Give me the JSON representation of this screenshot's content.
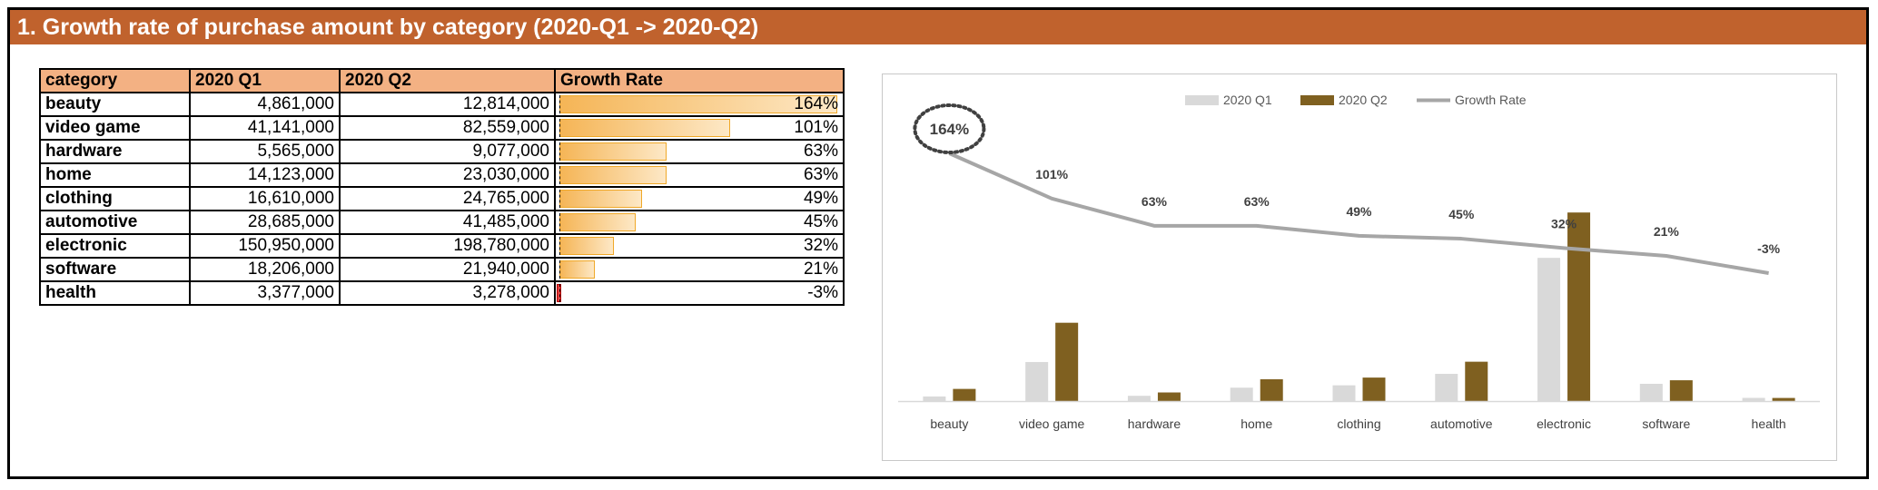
{
  "title": "1. Growth rate of purchase amount by category (2020-Q1 -> 2020-Q2)",
  "table": {
    "headers": [
      "category",
      "2020 Q1",
      "2020 Q2",
      "Growth Rate"
    ],
    "rows": [
      {
        "category": "beauty",
        "q1": "4,861,000",
        "q2": "12,814,000",
        "rate": "164%",
        "rate_value": 164
      },
      {
        "category": "video game",
        "q1": "41,141,000",
        "q2": "82,559,000",
        "rate": "101%",
        "rate_value": 101
      },
      {
        "category": "hardware",
        "q1": "5,565,000",
        "q2": "9,077,000",
        "rate": "63%",
        "rate_value": 63
      },
      {
        "category": "home",
        "q1": "14,123,000",
        "q2": "23,030,000",
        "rate": "63%",
        "rate_value": 63
      },
      {
        "category": "clothing",
        "q1": "16,610,000",
        "q2": "24,765,000",
        "rate": "49%",
        "rate_value": 49
      },
      {
        "category": "automotive",
        "q1": "28,685,000",
        "q2": "41,485,000",
        "rate": "45%",
        "rate_value": 45
      },
      {
        "category": "electronic",
        "q1": "150,950,000",
        "q2": "198,780,000",
        "rate": "32%",
        "rate_value": 32
      },
      {
        "category": "software",
        "q1": "18,206,000",
        "q2": "21,940,000",
        "rate": "21%",
        "rate_value": 21
      },
      {
        "category": "health",
        "q1": "3,377,000",
        "q2": "3,278,000",
        "rate": "-3%",
        "rate_value": -3
      }
    ]
  },
  "chart_data": {
    "type": "bar",
    "categories": [
      "beauty",
      "video game",
      "hardware",
      "home",
      "clothing",
      "automotive",
      "electronic",
      "software",
      "health"
    ],
    "series": [
      {
        "name": "2020 Q1",
        "kind": "bar",
        "color": "#d9d9d9",
        "values": [
          4861000,
          41141000,
          5565000,
          14123000,
          16610000,
          28685000,
          150950000,
          18206000,
          3377000
        ]
      },
      {
        "name": "2020 Q2",
        "kind": "bar",
        "color": "#7f6020",
        "values": [
          12814000,
          82559000,
          9077000,
          23030000,
          24765000,
          41485000,
          198780000,
          21940000,
          3278000
        ]
      },
      {
        "name": "Growth Rate",
        "kind": "line",
        "color": "#a6a6a6",
        "values": [
          164,
          101,
          63,
          63,
          49,
          45,
          32,
          21,
          -3
        ],
        "labels": [
          "164%",
          "101%",
          "63%",
          "63%",
          "49%",
          "45%",
          "32%",
          "21%",
          "-3%"
        ]
      }
    ],
    "legend_position": "top",
    "highlight": {
      "category": "beauty",
      "label": "164%",
      "style": "dotted-circle"
    },
    "grid": false,
    "xlabel": "",
    "ylabel": ""
  }
}
